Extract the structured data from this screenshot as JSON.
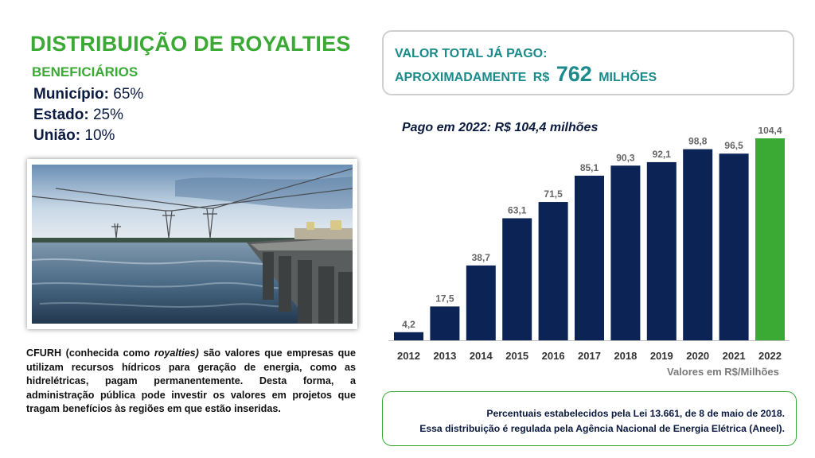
{
  "title": "DISTRIBUIÇÃO DE ROYALTIES",
  "subtitle": "BENEFICIÁRIOS",
  "shares": [
    {
      "label": "Município:",
      "value": "65%"
    },
    {
      "label": "Estado:",
      "value": "25%"
    },
    {
      "label": "União:",
      "value": "10%"
    }
  ],
  "total": {
    "line1": "VALOR TOTAL JÁ PAGO:",
    "prefix": "APROXIMADAMENTE",
    "currency": "R$",
    "amount": "762",
    "unit": "MILHÕES"
  },
  "description": {
    "part1": "CFURH (conhecida como ",
    "italic": "royalties)",
    "part2": " são valores que empresas que utilizam recursos hídricos para geração de energia, como as hidrelétricas, pagam permanentemente. Desta forma, a administração pública pode investir os valores em projetos que tragam benefícios às regiões em que estão inseridas."
  },
  "law_note": {
    "line1": "Percentuais estabelecidos pela Lei 13.661, de 8 de maio de 2018.",
    "line2": "Essa distribuição é regulada pela Agência Nacional de Energia Elétrica (Aneel)."
  },
  "chart_data": {
    "type": "bar",
    "title": "Pago em 2022: R$ 104,4 milhões",
    "unit_note": "Valores em R$/Milhões",
    "categories": [
      "2012",
      "2013",
      "2014",
      "2015",
      "2016",
      "2017",
      "2018",
      "2019",
      "2020",
      "2021",
      "2022"
    ],
    "values": [
      4.2,
      17.5,
      38.7,
      63.1,
      71.5,
      85.1,
      90.3,
      92.1,
      98.8,
      96.5,
      104.4
    ],
    "value_labels": [
      "4,2",
      "17,5",
      "38,7",
      "63,1",
      "71,5",
      "85,1",
      "90,3",
      "92,1",
      "98,8",
      "96,5",
      "104,4"
    ],
    "ylim": [
      0,
      104.4
    ],
    "grid": false,
    "legend": "none",
    "colors": {
      "default": "#0b2355",
      "highlight": "#3aaa35"
    },
    "highlight_category": "2022"
  }
}
